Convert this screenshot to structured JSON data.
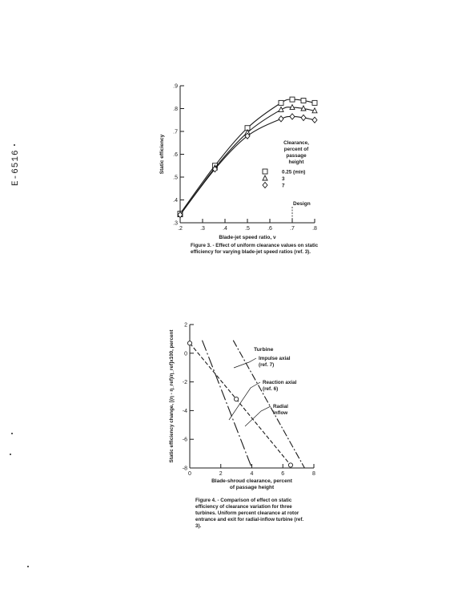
{
  "page": {
    "side_label": "E-6516"
  },
  "figure3": {
    "caption": "Figure 3. - Effect of uniform clearance values on static efficiency for varying blade-jet speed ratios (ref. 3).",
    "legend_title_lines": [
      "Clearance,",
      "percent of",
      "passage",
      "height"
    ],
    "design_label": "Design",
    "chart_data": {
      "type": "line",
      "xlabel": "Blade-jet speed ratio, ν",
      "ylabel": "Static efficiency",
      "xlim": [
        0.2,
        0.8
      ],
      "ylim": [
        0.3,
        0.9
      ],
      "xticks": [
        0.2,
        0.3,
        0.4,
        0.5,
        0.6,
        0.7,
        0.8
      ],
      "xtick_labels": [
        ".2",
        ".3",
        ".4",
        ".5",
        ".6",
        ".7",
        ".8"
      ],
      "yticks": [
        0.3,
        0.4,
        0.5,
        0.6,
        0.7,
        0.8,
        0.9
      ],
      "ytick_labels": [
        ".3",
        ".4",
        ".5",
        ".6",
        ".7",
        ".8",
        ".9"
      ],
      "design_x": 0.7,
      "series": [
        {
          "name": "0.25 (min)",
          "marker": "square",
          "x": [
            0.2,
            0.355,
            0.5,
            0.65,
            0.7,
            0.75,
            0.8
          ],
          "y": [
            0.34,
            0.55,
            0.715,
            0.825,
            0.84,
            0.835,
            0.825
          ]
        },
        {
          "name": "3",
          "marker": "triangle",
          "x": [
            0.2,
            0.355,
            0.5,
            0.65,
            0.7,
            0.75,
            0.8
          ],
          "y": [
            0.335,
            0.54,
            0.695,
            0.795,
            0.805,
            0.8,
            0.79
          ]
        },
        {
          "name": "7",
          "marker": "diamond",
          "x": [
            0.2,
            0.355,
            0.5,
            0.65,
            0.7,
            0.75,
            0.8
          ],
          "y": [
            0.335,
            0.535,
            0.68,
            0.755,
            0.765,
            0.76,
            0.75
          ]
        }
      ]
    }
  },
  "figure4": {
    "caption": "Figure 4. - Comparison of effect on static efficiency of clearance variation for three turbines. Uniform percent clearance at rotor entrance and exit for radial-inflow turbine (ref. 3).",
    "legend_title": "Turbine",
    "chart_data": {
      "type": "line",
      "xlabel_lines": [
        "Blade-shroud clearance, percent",
        "of passage height"
      ],
      "ylabel": "Static efficiency change, [(η - η_ref)/η_ref]x100, percent",
      "xlim": [
        0,
        8
      ],
      "ylim": [
        -8,
        2
      ],
      "xticks": [
        0,
        2,
        4,
        6,
        8
      ],
      "xtick_labels": [
        "0",
        "2",
        "4",
        "6",
        "8"
      ],
      "yticks": [
        -8,
        -6,
        -4,
        -2,
        0,
        2
      ],
      "ytick_labels": [
        "-8",
        "-6",
        "-4",
        "-2",
        "0",
        "2"
      ],
      "series": [
        {
          "name_lines": [
            "Impulse axial",
            "(ref. 7)"
          ],
          "style": "long-dash",
          "x": [
            0.8,
            4.0
          ],
          "y": [
            0.9,
            -8.0
          ]
        },
        {
          "name_lines": [
            "Reaction axial",
            "(ref. 6)"
          ],
          "style": "dash-dot",
          "x": [
            2.8,
            7.4
          ],
          "y": [
            0.9,
            -8.0
          ]
        },
        {
          "name_lines": [
            "Radial",
            "inflow"
          ],
          "style": "short-dash",
          "x": [
            0.0,
            3.0,
            6.5
          ],
          "y": [
            0.7,
            -3.2,
            -7.8
          ],
          "markers": "circle"
        }
      ]
    }
  }
}
